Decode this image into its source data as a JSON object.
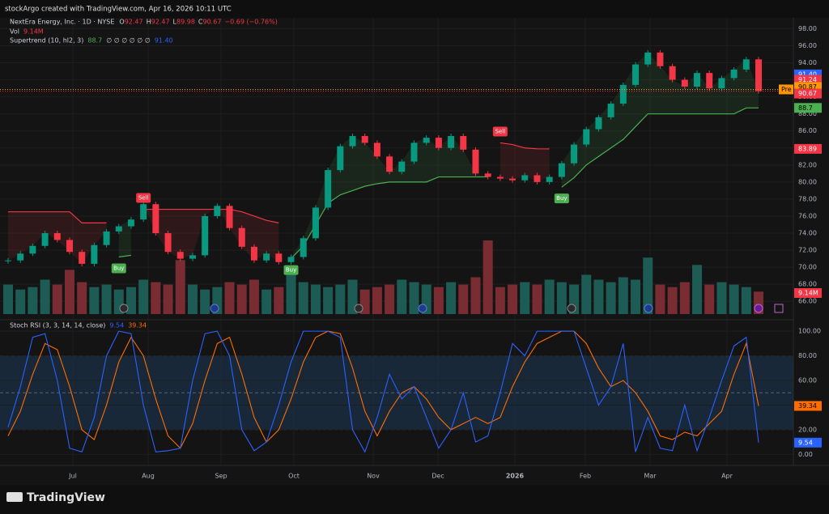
{
  "header": {
    "credit": "stockArgo created with TradingView.com, Apr 16, 2026 10:11 UTC",
    "symbol": "NextEra Energy, Inc. · 1D · NYSE",
    "ohlc": [
      {
        "prefix": "O",
        "value": 92.47
      },
      {
        "prefix": "H",
        "value": 92.47
      },
      {
        "prefix": "L",
        "value": 89.98
      },
      {
        "prefix": "C",
        "value": 90.67
      }
    ],
    "change": "−0.69 (−0.76%)",
    "volume_title": "Vol",
    "supertrend_title": "Supertrend (10, hl2, 3)",
    "supertrend_empty": "∅ ∅ ∅ ∅ ∅ ∅",
    "stoch_title": "Stoch RSI (3, 3, 14, 14, close)"
  },
  "footer": {
    "brand": "TradingView"
  },
  "chart_data": [
    {
      "type": "candlestick",
      "up_color": "#089981",
      "down_color": "#f23645",
      "closes": [
        70.8,
        71.6,
        72.5,
        74.0,
        73.2,
        71.8,
        70.4,
        72.6,
        74.2,
        74.8,
        75.6,
        77.4,
        74.0,
        71.8,
        71.0,
        71.4,
        76.0,
        77.2,
        74.6,
        72.4,
        70.8,
        71.6,
        70.6,
        71.2,
        73.4,
        77.0,
        81.4,
        84.2,
        85.4,
        84.6,
        83.0,
        81.2,
        82.4,
        84.6,
        85.2,
        84.0,
        85.4,
        83.8,
        81.0,
        80.6,
        80.4,
        80.2,
        80.8,
        80.0,
        80.6,
        82.2,
        84.4,
        86.2,
        87.6,
        89.2,
        91.4,
        93.8,
        95.2,
        93.6,
        92.0,
        91.2,
        92.8,
        91.0,
        92.2,
        93.2,
        94.4,
        90.67
      ],
      "volumes": [
        12,
        10,
        11,
        14,
        12,
        18,
        13,
        11,
        12,
        10,
        11,
        14,
        13,
        12,
        22,
        12,
        10,
        11,
        13,
        12,
        14,
        10,
        11,
        16,
        13,
        12,
        11,
        12,
        14,
        10,
        11,
        12,
        14,
        13,
        12,
        11,
        13,
        12,
        15,
        30,
        11,
        12,
        13,
        12,
        14,
        13,
        12,
        16,
        14,
        13,
        15,
        14,
        23,
        12,
        11,
        13,
        20,
        12,
        13,
        12,
        11,
        9.14
      ],
      "volume_last_label": "9.14M",
      "supertrend": {
        "up_color": "#4caf50",
        "down_color": "#f23645",
        "up": [
          null,
          null,
          null,
          null,
          null,
          null,
          null,
          null,
          null,
          71.2,
          71.4,
          null,
          null,
          null,
          null,
          null,
          null,
          null,
          null,
          null,
          null,
          null,
          null,
          71.0,
          72.5,
          75.0,
          77.5,
          78.5,
          79.0,
          79.5,
          79.8,
          80.0,
          80.0,
          80.0,
          80.0,
          80.6,
          80.6,
          80.6,
          80.6,
          80.6,
          null,
          null,
          null,
          null,
          null,
          79.4,
          80.5,
          82.0,
          83.0,
          84.0,
          85.0,
          86.5,
          88.0,
          88.0,
          88.0,
          88.0,
          88.0,
          88.0,
          88.0,
          88.0,
          88.7,
          88.7
        ],
        "down": [
          76.5,
          76.5,
          76.5,
          76.5,
          76.5,
          76.5,
          75.2,
          75.2,
          75.2,
          null,
          null,
          76.8,
          76.8,
          76.8,
          76.8,
          76.8,
          76.8,
          76.8,
          76.8,
          76.5,
          76.0,
          75.5,
          75.2,
          null,
          null,
          null,
          null,
          null,
          null,
          null,
          null,
          null,
          null,
          null,
          null,
          null,
          null,
          null,
          null,
          null,
          84.6,
          84.4,
          84.0,
          83.9,
          83.89,
          null,
          null,
          null,
          null,
          null,
          null,
          null,
          null,
          null,
          null,
          null,
          null,
          null,
          null,
          null,
          null,
          null
        ],
        "signals": [
          null,
          null,
          null,
          null,
          null,
          null,
          null,
          null,
          null,
          "Buy",
          null,
          "Sell",
          null,
          null,
          null,
          null,
          null,
          null,
          null,
          null,
          null,
          null,
          null,
          "Buy",
          null,
          null,
          null,
          null,
          null,
          null,
          null,
          null,
          null,
          null,
          null,
          null,
          null,
          null,
          null,
          null,
          "Sell",
          null,
          null,
          null,
          null,
          "Buy",
          null,
          null,
          null,
          null,
          null,
          null,
          null,
          null,
          null,
          null,
          null,
          null,
          null,
          null,
          null,
          null
        ]
      },
      "price_badges": [
        {
          "value": 91.4,
          "label": "91.40",
          "color": "#2962ff"
        },
        {
          "value": 91.24,
          "label": "91.24",
          "color": "#f23645"
        },
        {
          "value": 90.87,
          "label": "90.87",
          "color": "#ff9800",
          "prefix": "Pre"
        }
      ],
      "ylim": [
        64.5,
        98.8
      ],
      "yticks": [
        {
          "value": 66,
          "label": "66.00"
        },
        {
          "value": 68,
          "label": "68.00"
        },
        {
          "value": 70,
          "label": "70.00"
        },
        {
          "value": 72,
          "label": "72.00"
        },
        {
          "value": 74,
          "label": "74.00"
        },
        {
          "value": 76,
          "label": "76.00"
        },
        {
          "value": 78,
          "label": "78.00"
        },
        {
          "value": 80,
          "label": "80.00"
        },
        {
          "value": 82,
          "label": "82.00"
        },
        {
          "value": 84,
          "label": "84.00"
        },
        {
          "value": 86,
          "label": "86.00"
        },
        {
          "value": 88,
          "label": "88.00"
        },
        {
          "value": 90,
          "label": "90.00"
        },
        {
          "value": 92,
          "label": "92.00"
        },
        {
          "value": 94,
          "label": "94.00"
        },
        {
          "value": 96,
          "label": "96.00"
        },
        {
          "value": 98,
          "label": "98.00"
        }
      ],
      "x_labels": [
        "Jul",
        "Aug",
        "Sep",
        "Oct",
        "Nov",
        "Dec",
        "2026",
        "Feb",
        "Mar",
        "Apr"
      ]
    },
    {
      "type": "stoch_rsi",
      "series": [
        {
          "name": "K",
          "color": "#2962ff",
          "values": [
            22,
            55,
            95,
            98,
            60,
            5,
            2,
            30,
            80,
            100,
            98,
            40,
            2,
            3,
            5,
            60,
            98,
            100,
            80,
            20,
            3,
            10,
            40,
            75,
            100,
            100,
            100,
            95,
            20,
            2,
            30,
            65,
            45,
            55,
            30,
            5,
            20,
            50,
            10,
            15,
            50,
            90,
            80,
            100,
            100,
            100,
            100,
            70,
            40,
            55,
            90,
            2,
            30,
            5,
            3,
            40,
            3,
            30,
            60,
            88,
            95,
            9.54
          ]
        },
        {
          "name": "D",
          "color": "#ff6d00",
          "values": [
            15,
            35,
            65,
            90,
            85,
            55,
            20,
            12,
            40,
            75,
            95,
            80,
            45,
            15,
            5,
            25,
            60,
            90,
            95,
            65,
            30,
            10,
            20,
            45,
            75,
            95,
            100,
            98,
            70,
            35,
            15,
            35,
            50,
            55,
            45,
            30,
            20,
            25,
            30,
            25,
            30,
            55,
            75,
            90,
            95,
            100,
            100,
            90,
            70,
            55,
            60,
            50,
            35,
            15,
            12,
            18,
            15,
            25,
            35,
            65,
            90,
            39.34
          ]
        }
      ],
      "bands": [
        20,
        50,
        80
      ],
      "ylim": [
        -7,
        106
      ],
      "yticks": [
        {
          "value": 0,
          "label": "0.00"
        },
        {
          "value": 20,
          "label": "20.00"
        },
        {
          "value": 40,
          "label": "40.00"
        },
        {
          "value": 60,
          "label": "60.00"
        },
        {
          "value": 80,
          "label": "80.00"
        },
        {
          "value": 100,
          "label": "100.00"
        }
      ]
    }
  ]
}
